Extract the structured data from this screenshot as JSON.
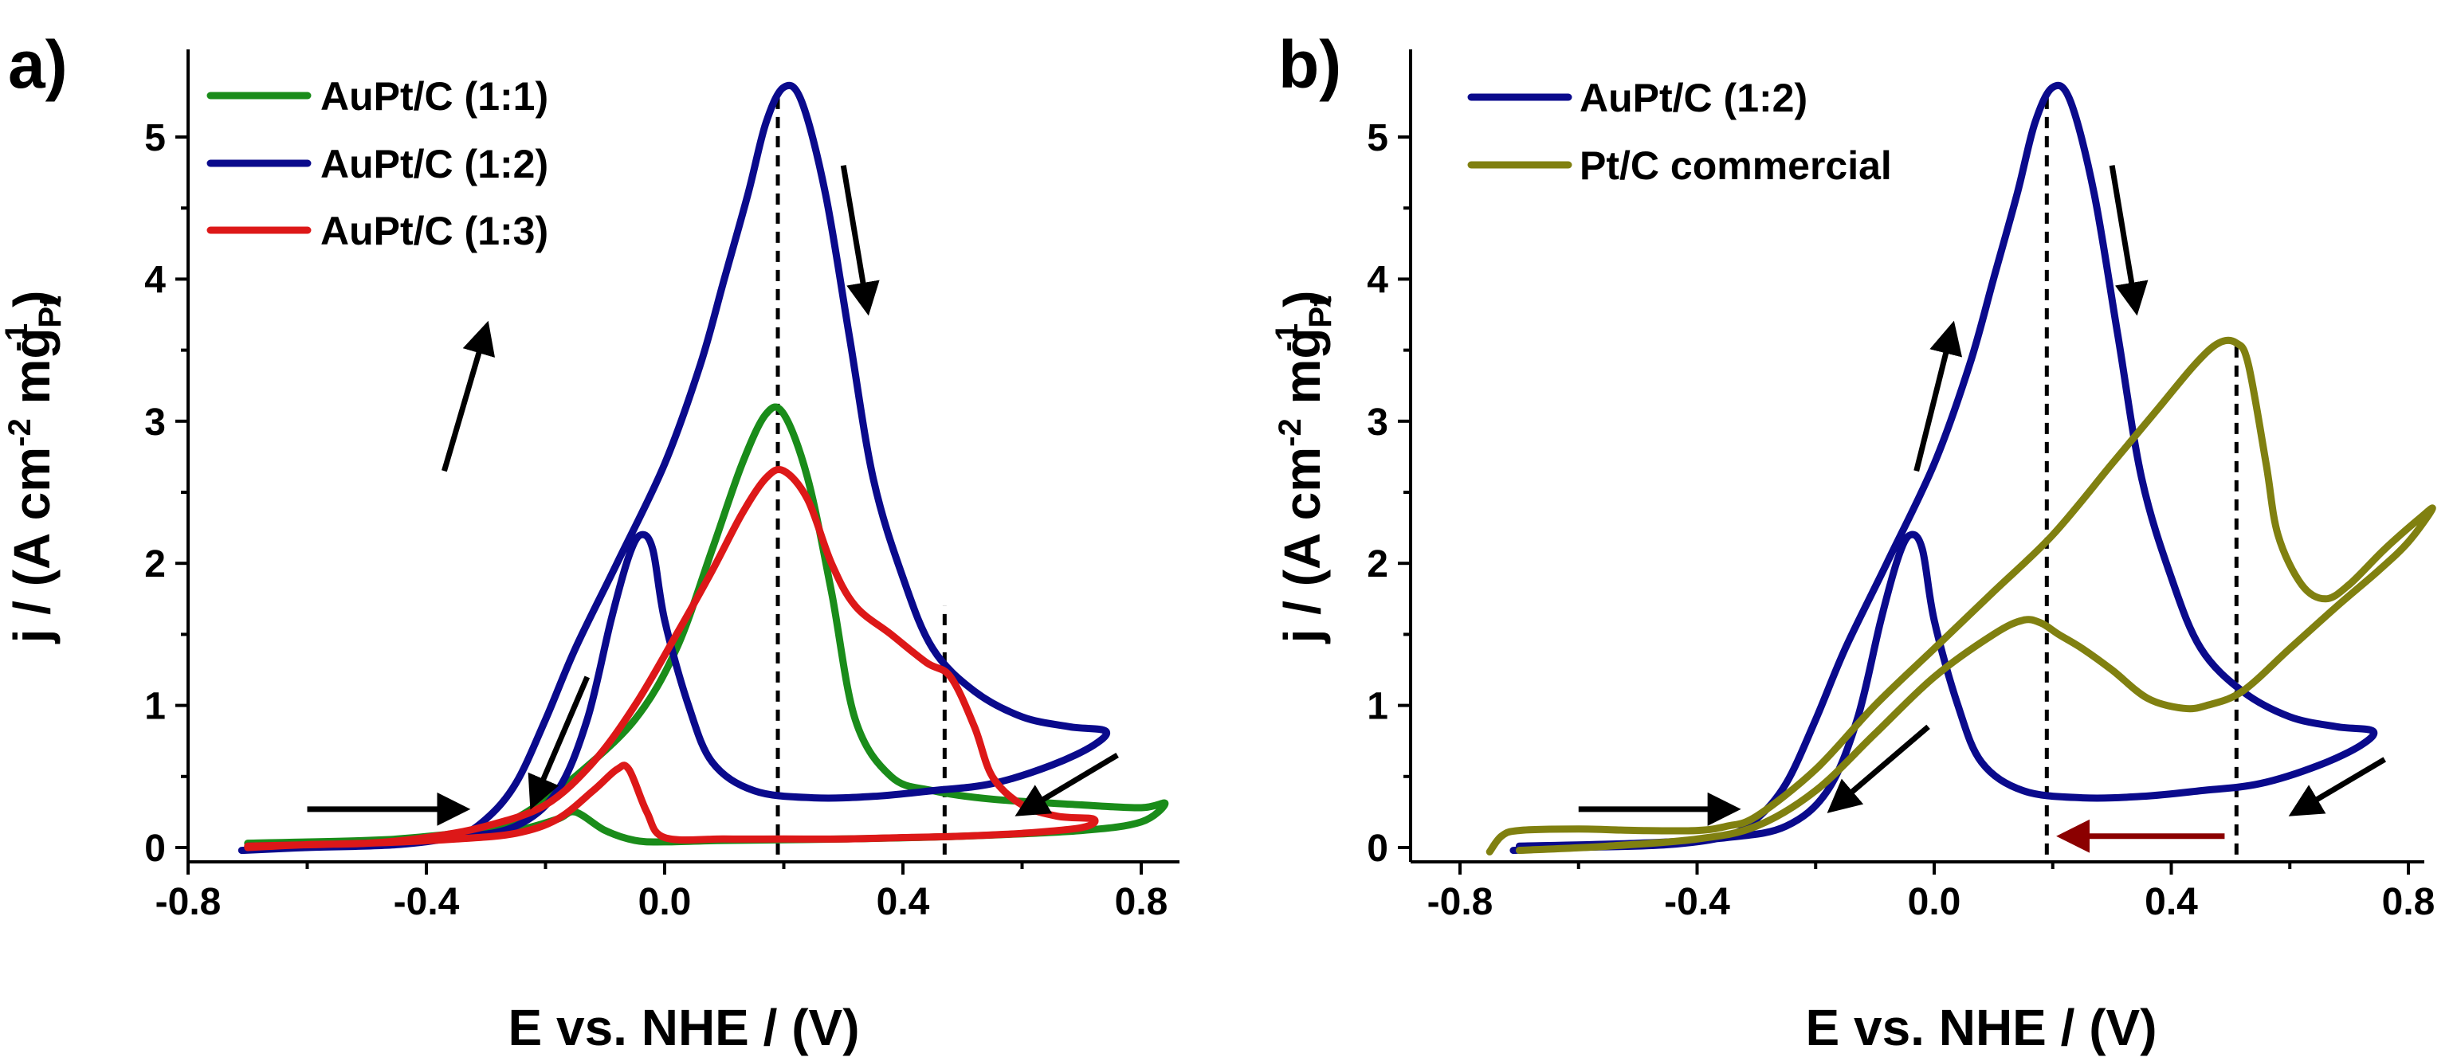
{
  "chart_data": [
    {
      "type": "line",
      "panel_label": "a)",
      "xlabel": "E vs. NHE / (V)",
      "ylabel": {
        "prefix": "j / (A cm",
        "sup1": "-2",
        "mid": " mg",
        "sub": "Pt",
        "sup2": "-1",
        "suffix": ")"
      },
      "xlim": [
        -0.8,
        0.9
      ],
      "ylim": [
        -0.1,
        5.5
      ],
      "xticks": [
        -0.8,
        -0.4,
        0.0,
        0.4,
        0.8
      ],
      "xtick_labels": [
        "-0.8",
        "-0.4",
        "0.0",
        "0.4",
        "0.8"
      ],
      "yticks": [
        0,
        1,
        2,
        3,
        4,
        5
      ],
      "ytick_labels": [
        "0",
        "1",
        "2",
        "3",
        "4",
        "5"
      ],
      "legend_position": "top-left",
      "series": [
        {
          "name": "AuPt/C (1:1)",
          "color": "#1a8c1a",
          "points": [
            [
              -0.7,
              0.0
            ],
            [
              -0.6,
              0.02
            ],
            [
              -0.45,
              0.06
            ],
            [
              -0.35,
              0.1
            ],
            [
              -0.28,
              0.15
            ],
            [
              -0.22,
              0.28
            ],
            [
              -0.15,
              0.5
            ],
            [
              -0.05,
              0.9
            ],
            [
              0.02,
              1.4
            ],
            [
              0.08,
              2.1
            ],
            [
              0.13,
              2.7
            ],
            [
              0.17,
              3.05
            ],
            [
              0.2,
              3.05
            ],
            [
              0.24,
              2.6
            ],
            [
              0.28,
              1.8
            ],
            [
              0.32,
              0.9
            ],
            [
              0.38,
              0.5
            ],
            [
              0.45,
              0.4
            ],
            [
              0.55,
              0.34
            ],
            [
              0.7,
              0.3
            ],
            [
              0.8,
              0.28
            ],
            [
              0.84,
              0.31
            ],
            [
              0.8,
              0.18
            ],
            [
              0.7,
              0.12
            ],
            [
              0.5,
              0.08
            ],
            [
              0.3,
              0.06
            ],
            [
              0.1,
              0.05
            ],
            [
              0.0,
              0.04
            ],
            [
              -0.05,
              0.05
            ],
            [
              -0.1,
              0.12
            ],
            [
              -0.15,
              0.25
            ],
            [
              -0.18,
              0.2
            ],
            [
              -0.25,
              0.12
            ],
            [
              -0.35,
              0.08
            ],
            [
              -0.5,
              0.05
            ],
            [
              -0.7,
              0.03
            ]
          ]
        },
        {
          "name": "AuPt/C (1:2)",
          "color": "#0a0a8c",
          "points": [
            [
              -0.71,
              -0.02
            ],
            [
              -0.6,
              0.0
            ],
            [
              -0.45,
              0.02
            ],
            [
              -0.35,
              0.08
            ],
            [
              -0.3,
              0.2
            ],
            [
              -0.25,
              0.45
            ],
            [
              -0.2,
              0.9
            ],
            [
              -0.15,
              1.4
            ],
            [
              -0.08,
              2.0
            ],
            [
              0.0,
              2.7
            ],
            [
              0.06,
              3.4
            ],
            [
              0.1,
              4.0
            ],
            [
              0.14,
              4.6
            ],
            [
              0.17,
              5.1
            ],
            [
              0.2,
              5.35
            ],
            [
              0.23,
              5.25
            ],
            [
              0.27,
              4.6
            ],
            [
              0.31,
              3.6
            ],
            [
              0.35,
              2.6
            ],
            [
              0.4,
              1.9
            ],
            [
              0.45,
              1.4
            ],
            [
              0.52,
              1.1
            ],
            [
              0.6,
              0.92
            ],
            [
              0.68,
              0.85
            ],
            [
              0.74,
              0.82
            ],
            [
              0.72,
              0.72
            ],
            [
              0.65,
              0.58
            ],
            [
              0.55,
              0.45
            ],
            [
              0.45,
              0.4
            ],
            [
              0.35,
              0.36
            ],
            [
              0.25,
              0.35
            ],
            [
              0.15,
              0.4
            ],
            [
              0.08,
              0.6
            ],
            [
              0.04,
              1.0
            ],
            [
              0.0,
              1.6
            ],
            [
              -0.02,
              2.1
            ],
            [
              -0.04,
              2.2
            ],
            [
              -0.06,
              2.05
            ],
            [
              -0.09,
              1.6
            ],
            [
              -0.13,
              0.9
            ],
            [
              -0.18,
              0.4
            ],
            [
              -0.25,
              0.15
            ],
            [
              -0.35,
              0.07
            ],
            [
              -0.5,
              0.03
            ],
            [
              -0.7,
              0.01
            ]
          ]
        },
        {
          "name": "AuPt/C (1:3)",
          "color": "#dd1818",
          "points": [
            [
              -0.7,
              0.0
            ],
            [
              -0.6,
              0.02
            ],
            [
              -0.5,
              0.03
            ],
            [
              -0.4,
              0.07
            ],
            [
              -0.3,
              0.15
            ],
            [
              -0.2,
              0.3
            ],
            [
              -0.12,
              0.6
            ],
            [
              -0.05,
              1.0
            ],
            [
              0.02,
              1.5
            ],
            [
              0.08,
              1.95
            ],
            [
              0.13,
              2.35
            ],
            [
              0.17,
              2.6
            ],
            [
              0.2,
              2.65
            ],
            [
              0.24,
              2.45
            ],
            [
              0.28,
              2.0
            ],
            [
              0.32,
              1.7
            ],
            [
              0.38,
              1.5
            ],
            [
              0.44,
              1.3
            ],
            [
              0.48,
              1.2
            ],
            [
              0.52,
              0.85
            ],
            [
              0.55,
              0.5
            ],
            [
              0.6,
              0.3
            ],
            [
              0.66,
              0.22
            ],
            [
              0.72,
              0.2
            ],
            [
              0.7,
              0.14
            ],
            [
              0.6,
              0.1
            ],
            [
              0.5,
              0.08
            ],
            [
              0.4,
              0.07
            ],
            [
              0.3,
              0.06
            ],
            [
              0.2,
              0.06
            ],
            [
              0.1,
              0.06
            ],
            [
              0.0,
              0.07
            ],
            [
              -0.03,
              0.25
            ],
            [
              -0.06,
              0.55
            ],
            [
              -0.08,
              0.55
            ],
            [
              -0.12,
              0.4
            ],
            [
              -0.18,
              0.2
            ],
            [
              -0.25,
              0.1
            ],
            [
              -0.35,
              0.06
            ],
            [
              -0.5,
              0.03
            ],
            [
              -0.7,
              0.01
            ]
          ]
        }
      ],
      "vlines": [
        {
          "x": 0.19,
          "y0": -0.05,
          "y1": 5.32
        },
        {
          "x": 0.47,
          "y0": -0.05,
          "y1": 1.7
        }
      ],
      "arrows": [
        {
          "from": [
            -0.6,
            0.27
          ],
          "to": [
            -0.34,
            0.27
          ],
          "color": "#000000"
        },
        {
          "from": [
            -0.37,
            2.65
          ],
          "to": [
            -0.3,
            3.65
          ],
          "color": "#000000"
        },
        {
          "from": [
            0.3,
            4.8
          ],
          "to": [
            0.34,
            3.8
          ],
          "color": "#000000"
        },
        {
          "from": [
            0.76,
            0.65
          ],
          "to": [
            0.6,
            0.25
          ],
          "color": "#000000"
        },
        {
          "from": [
            -0.13,
            1.2
          ],
          "to": [
            -0.22,
            0.32
          ],
          "color": "#000000"
        }
      ]
    },
    {
      "type": "line",
      "panel_label": "b)",
      "xlabel": "E vs. NHE / (V)",
      "ylabel": {
        "prefix": "j / (A cm",
        "sup1": "-2",
        "mid": " mg",
        "sub": "Pt",
        "sup2": "-1",
        "suffix": ")"
      },
      "xlim": [
        -0.8,
        0.9
      ],
      "ylim": [
        -0.1,
        5.5
      ],
      "xticks": [
        -0.8,
        -0.4,
        0.0,
        0.4,
        0.8
      ],
      "xtick_labels": [
        "-0.8",
        "-0.4",
        "0.0",
        "0.4",
        "0.8"
      ],
      "yticks": [
        0,
        1,
        2,
        3,
        4,
        5
      ],
      "ytick_labels": [
        "0",
        "1",
        "2",
        "3",
        "4",
        "5"
      ],
      "legend_position": "top-left",
      "series": [
        {
          "name": "AuPt/C (1:2)",
          "color": "#0a0a8c",
          "points": [
            [
              -0.71,
              -0.02
            ],
            [
              -0.6,
              0.0
            ],
            [
              -0.45,
              0.02
            ],
            [
              -0.35,
              0.08
            ],
            [
              -0.3,
              0.2
            ],
            [
              -0.25,
              0.45
            ],
            [
              -0.2,
              0.9
            ],
            [
              -0.15,
              1.4
            ],
            [
              -0.08,
              2.0
            ],
            [
              0.0,
              2.7
            ],
            [
              0.06,
              3.4
            ],
            [
              0.1,
              4.0
            ],
            [
              0.14,
              4.6
            ],
            [
              0.17,
              5.1
            ],
            [
              0.2,
              5.35
            ],
            [
              0.23,
              5.25
            ],
            [
              0.27,
              4.6
            ],
            [
              0.31,
              3.6
            ],
            [
              0.35,
              2.6
            ],
            [
              0.4,
              1.9
            ],
            [
              0.45,
              1.4
            ],
            [
              0.52,
              1.1
            ],
            [
              0.6,
              0.92
            ],
            [
              0.68,
              0.85
            ],
            [
              0.74,
              0.82
            ],
            [
              0.72,
              0.72
            ],
            [
              0.65,
              0.58
            ],
            [
              0.55,
              0.45
            ],
            [
              0.45,
              0.4
            ],
            [
              0.35,
              0.36
            ],
            [
              0.25,
              0.35
            ],
            [
              0.15,
              0.4
            ],
            [
              0.08,
              0.6
            ],
            [
              0.04,
              1.0
            ],
            [
              0.0,
              1.6
            ],
            [
              -0.02,
              2.1
            ],
            [
              -0.04,
              2.2
            ],
            [
              -0.06,
              2.05
            ],
            [
              -0.09,
              1.6
            ],
            [
              -0.13,
              0.9
            ],
            [
              -0.18,
              0.4
            ],
            [
              -0.25,
              0.15
            ],
            [
              -0.35,
              0.07
            ],
            [
              -0.5,
              0.03
            ],
            [
              -0.7,
              0.01
            ]
          ]
        },
        {
          "name": "Pt/C commercial",
          "color": "#808010",
          "points": [
            [
              -0.75,
              -0.03
            ],
            [
              -0.73,
              0.08
            ],
            [
              -0.7,
              0.12
            ],
            [
              -0.6,
              0.13
            ],
            [
              -0.5,
              0.12
            ],
            [
              -0.4,
              0.12
            ],
            [
              -0.35,
              0.15
            ],
            [
              -0.3,
              0.22
            ],
            [
              -0.2,
              0.55
            ],
            [
              -0.1,
              1.0
            ],
            [
              0.0,
              1.4
            ],
            [
              0.1,
              1.8
            ],
            [
              0.2,
              2.2
            ],
            [
              0.3,
              2.7
            ],
            [
              0.38,
              3.1
            ],
            [
              0.44,
              3.4
            ],
            [
              0.48,
              3.55
            ],
            [
              0.51,
              3.55
            ],
            [
              0.53,
              3.4
            ],
            [
              0.56,
              2.7
            ],
            [
              0.58,
              2.2
            ],
            [
              0.62,
              1.85
            ],
            [
              0.66,
              1.75
            ],
            [
              0.7,
              1.85
            ],
            [
              0.76,
              2.1
            ],
            [
              0.82,
              2.32
            ],
            [
              0.84,
              2.38
            ],
            [
              0.8,
              2.15
            ],
            [
              0.75,
              1.95
            ],
            [
              0.68,
              1.7
            ],
            [
              0.6,
              1.4
            ],
            [
              0.52,
              1.1
            ],
            [
              0.46,
              1.0
            ],
            [
              0.42,
              0.98
            ],
            [
              0.36,
              1.05
            ],
            [
              0.3,
              1.25
            ],
            [
              0.25,
              1.4
            ],
            [
              0.21,
              1.5
            ],
            [
              0.18,
              1.58
            ],
            [
              0.15,
              1.6
            ],
            [
              0.1,
              1.5
            ],
            [
              0.0,
              1.2
            ],
            [
              -0.1,
              0.8
            ],
            [
              -0.2,
              0.4
            ],
            [
              -0.3,
              0.15
            ],
            [
              -0.4,
              0.06
            ],
            [
              -0.55,
              0.01
            ],
            [
              -0.7,
              -0.02
            ]
          ]
        }
      ],
      "vlines": [
        {
          "x": 0.19,
          "y0": -0.05,
          "y1": 5.32
        },
        {
          "x": 0.51,
          "y0": -0.05,
          "y1": 3.55
        }
      ],
      "arrows": [
        {
          "from": [
            -0.6,
            0.27
          ],
          "to": [
            -0.34,
            0.27
          ],
          "color": "#000000"
        },
        {
          "from": [
            -0.03,
            2.65
          ],
          "to": [
            0.03,
            3.65
          ],
          "color": "#000000"
        },
        {
          "from": [
            0.3,
            4.8
          ],
          "to": [
            0.34,
            3.8
          ],
          "color": "#000000"
        },
        {
          "from": [
            0.76,
            0.62
          ],
          "to": [
            0.61,
            0.25
          ],
          "color": "#000000"
        },
        {
          "from": [
            -0.01,
            0.85
          ],
          "to": [
            -0.17,
            0.28
          ],
          "color": "#000000"
        },
        {
          "from": [
            0.49,
            0.08
          ],
          "to": [
            0.22,
            0.08
          ],
          "color": "#8b0000"
        }
      ]
    }
  ]
}
